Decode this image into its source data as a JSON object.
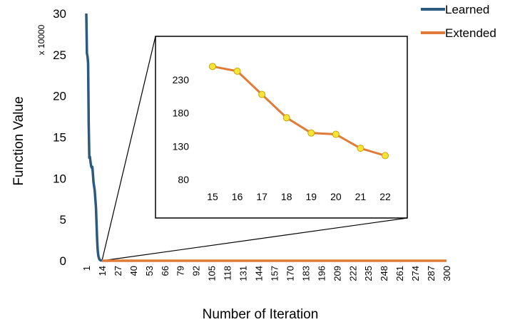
{
  "chart_data": [
    {
      "type": "line",
      "xlabel": "Number of Iteration",
      "ylabel": "Function Value",
      "y_multiplier_label": "x 10000",
      "ylim": [
        0,
        30
      ],
      "yticks": [
        "0",
        "5",
        "10",
        "15",
        "20",
        "25",
        "30"
      ],
      "xticks": [
        "1",
        "14",
        "27",
        "40",
        "53",
        "66",
        "79",
        "92",
        "105",
        "118",
        "131",
        "144",
        "157",
        "170",
        "183",
        "196",
        "209",
        "222",
        "235",
        "248",
        "261",
        "274",
        "287",
        "300"
      ],
      "xlim": [
        1,
        300
      ],
      "legend": {
        "placement": "top-right",
        "entries": [
          "Learned",
          "Extended"
        ]
      },
      "colors": {
        "Learned": "#2b5a7e",
        "Extended": "#e07b39"
      },
      "series": [
        {
          "name": "Learned",
          "x": [
            1,
            1.5,
            2,
            2.5,
            3,
            3.5,
            4,
            4.5,
            5,
            5.5,
            6,
            6.5,
            7,
            7.5,
            8,
            8.5,
            9,
            9.5,
            10,
            10.5,
            11,
            11.5,
            12,
            12.5,
            13,
            14
          ],
          "y": [
            30,
            25.2,
            24.8,
            24,
            16.5,
            12.5,
            12.6,
            12,
            11.5,
            11.3,
            11.4,
            10.5,
            9.5,
            9,
            8.5,
            7.5,
            6.5,
            4.5,
            2.5,
            1.2,
            0.6,
            0.3,
            0.15,
            0.08,
            0.04,
            0.02
          ]
        },
        {
          "name": "Extended",
          "x": [
            14,
            300
          ],
          "y": [
            0.0,
            0.0
          ]
        }
      ]
    },
    {
      "type": "line",
      "inset": true,
      "categories": [
        "15",
        "16",
        "17",
        "18",
        "19",
        "20",
        "21",
        "22"
      ],
      "yticks": [
        "80",
        "130",
        "180",
        "230"
      ],
      "ylim": [
        80,
        270
      ],
      "series": [
        {
          "name": "Extended",
          "values": [
            250,
            243,
            208,
            173,
            150,
            148,
            127,
            116
          ]
        }
      ],
      "marker_color": "#f6e43a"
    }
  ]
}
